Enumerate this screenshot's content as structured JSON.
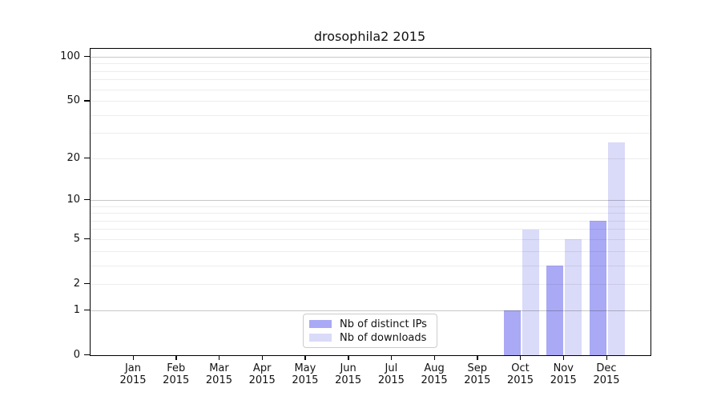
{
  "figure": {
    "title": "drosophila2 2015"
  },
  "chart_data": {
    "type": "bar",
    "title": "drosophila2 2015",
    "x_categories": [
      "Jan",
      "Feb",
      "Mar",
      "Apr",
      "May",
      "Jun",
      "Jul",
      "Aug",
      "Sep",
      "Oct",
      "Nov",
      "Dec"
    ],
    "x_year": "2015",
    "series": [
      {
        "name": "Nb of distinct IPs",
        "color": "#a9a9f5",
        "values": [
          0,
          0,
          0,
          0,
          0,
          0,
          0,
          0,
          0,
          1,
          3,
          7
        ]
      },
      {
        "name": "Nb of downloads",
        "color": "#dadaf9",
        "values": [
          0,
          0,
          0,
          0,
          0,
          0,
          0,
          0,
          0,
          6,
          5,
          26
        ]
      }
    ],
    "y_axis": {
      "scale": "log1p",
      "ticks": [
        0,
        1,
        2,
        5,
        10,
        20,
        50,
        100
      ],
      "major_gridlines": [
        1,
        10,
        100
      ],
      "minor_gridlines": [
        2,
        3,
        4,
        5,
        6,
        7,
        8,
        9,
        20,
        30,
        40,
        50,
        60,
        70,
        80,
        90
      ],
      "ylim": [
        0,
        114
      ],
      "grid": true
    },
    "legend": {
      "position": "lower center"
    }
  },
  "colors": {
    "spine": "#000000",
    "text": "#111111",
    "legend_border": "#cccccc"
  }
}
